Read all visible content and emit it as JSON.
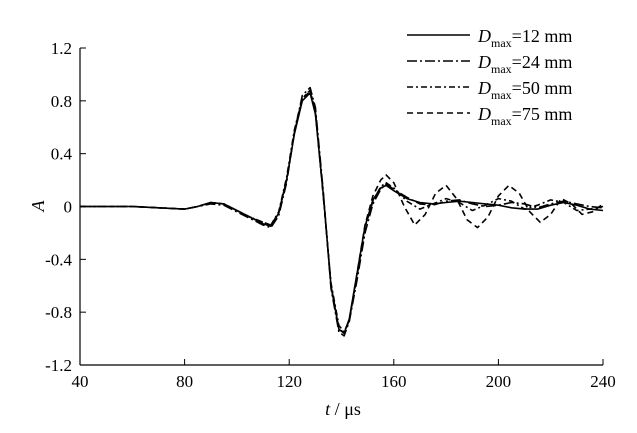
{
  "chart_data": {
    "type": "line",
    "title": "",
    "xlabel": {
      "var": "t",
      "unit": "μs"
    },
    "ylabel": "A",
    "xlim": [
      40,
      240
    ],
    "ylim": [
      -1.2,
      1.2
    ],
    "xticks": [
      40,
      80,
      120,
      160,
      200,
      240
    ],
    "yticks": [
      "-1.2",
      "-0.8",
      "-0.4",
      "0",
      "0.4",
      "0.8",
      "1.2"
    ],
    "grid": false,
    "legend_position": "top-right",
    "series": [
      {
        "name": "12 mm",
        "style": "solid",
        "x": [
          40,
          60,
          70,
          80,
          85,
          90,
          95,
          100,
          105,
          110,
          113,
          116,
          119,
          122,
          125,
          128,
          130,
          133,
          136,
          139,
          141,
          143,
          146,
          149,
          152,
          155,
          157,
          160,
          165,
          170,
          175,
          180,
          185,
          190,
          195,
          200,
          205,
          210,
          215,
          220,
          225,
          230,
          235,
          240
        ],
        "y": [
          0,
          0,
          -0.01,
          -0.02,
          0,
          0.03,
          0.02,
          -0.03,
          -0.08,
          -0.13,
          -0.15,
          -0.05,
          0.2,
          0.55,
          0.8,
          0.86,
          0.7,
          0.1,
          -0.6,
          -0.93,
          -0.96,
          -0.85,
          -0.5,
          -0.15,
          0.05,
          0.14,
          0.16,
          0.12,
          0.06,
          0.03,
          0.02,
          0.03,
          0.04,
          0.03,
          0.02,
          0.01,
          -0.01,
          -0.02,
          -0.02,
          0.01,
          0.03,
          0.01,
          -0.02,
          -0.03
        ]
      },
      {
        "name": "24 mm",
        "style": "dashdot-long",
        "x": [
          40,
          60,
          70,
          80,
          85,
          90,
          95,
          100,
          105,
          110,
          113,
          116,
          119,
          122,
          125,
          128,
          130,
          133,
          136,
          139,
          141,
          143,
          146,
          149,
          152,
          155,
          157,
          160,
          165,
          170,
          175,
          180,
          185,
          190,
          195,
          200,
          205,
          210,
          215,
          220,
          225,
          230,
          235,
          240
        ],
        "y": [
          0,
          0,
          -0.01,
          -0.02,
          0,
          0.02,
          0.01,
          -0.04,
          -0.09,
          -0.14,
          -0.16,
          -0.07,
          0.18,
          0.56,
          0.84,
          0.9,
          0.75,
          0.12,
          -0.62,
          -0.95,
          -0.98,
          -0.87,
          -0.55,
          -0.2,
          0.02,
          0.13,
          0.17,
          0.13,
          0.07,
          0.02,
          0.01,
          0.04,
          0.05,
          0.02,
          0,
          0.01,
          0.03,
          0.02,
          -0.01,
          0.02,
          0.04,
          0.02,
          0,
          -0.01
        ]
      },
      {
        "name": "50 mm",
        "style": "dashdot",
        "x": [
          40,
          60,
          70,
          80,
          85,
          90,
          95,
          100,
          105,
          110,
          113,
          116,
          119,
          122,
          125,
          128,
          130,
          133,
          136,
          139,
          141,
          143,
          146,
          149,
          152,
          155,
          157,
          160,
          165,
          170,
          175,
          180,
          185,
          190,
          195,
          200,
          205,
          210,
          215,
          220,
          225,
          230,
          235,
          240
        ],
        "y": [
          0,
          0,
          -0.01,
          -0.02,
          0,
          0.03,
          0.02,
          -0.03,
          -0.08,
          -0.12,
          -0.14,
          -0.04,
          0.22,
          0.58,
          0.82,
          0.88,
          0.72,
          0.08,
          -0.58,
          -0.9,
          -0.95,
          -0.86,
          -0.52,
          -0.16,
          0.04,
          0.15,
          0.18,
          0.14,
          0.04,
          -0.02,
          0.02,
          0.06,
          0.03,
          -0.03,
          0.01,
          0.06,
          0.04,
          -0.02,
          0.01,
          0.05,
          0.03,
          -0.03,
          -0.02,
          0
        ]
      },
      {
        "name": "75 mm",
        "style": "dashed",
        "x": [
          40,
          60,
          70,
          80,
          85,
          90,
          95,
          100,
          105,
          110,
          113,
          116,
          119,
          122,
          125,
          128,
          130,
          133,
          136,
          139,
          141,
          143,
          146,
          149,
          152,
          155,
          157,
          160,
          164,
          168,
          172,
          176,
          180,
          184,
          188,
          192,
          196,
          200,
          204,
          208,
          212,
          216,
          220,
          224,
          228,
          232,
          236,
          240
        ],
        "y": [
          0,
          0,
          -0.01,
          -0.02,
          0,
          0.03,
          0.02,
          -0.03,
          -0.08,
          -0.12,
          -0.14,
          -0.05,
          0.2,
          0.56,
          0.82,
          0.87,
          0.71,
          0.1,
          -0.6,
          -0.92,
          -0.96,
          -0.86,
          -0.5,
          -0.14,
          0.08,
          0.2,
          0.24,
          0.18,
          0,
          -0.14,
          -0.06,
          0.1,
          0.16,
          0.06,
          -0.1,
          -0.16,
          -0.08,
          0.08,
          0.16,
          0.1,
          -0.04,
          -0.12,
          -0.06,
          0.06,
          0.02,
          -0.06,
          -0.04,
          0.02
        ]
      }
    ],
    "legend": [
      {
        "sym": "D",
        "sub": "max",
        "text": "=12 mm"
      },
      {
        "sym": "D",
        "sub": "max",
        "text": "=24 mm"
      },
      {
        "sym": "D",
        "sub": "max",
        "text": "=50 mm"
      },
      {
        "sym": "D",
        "sub": "max",
        "text": "=75 mm"
      }
    ]
  }
}
